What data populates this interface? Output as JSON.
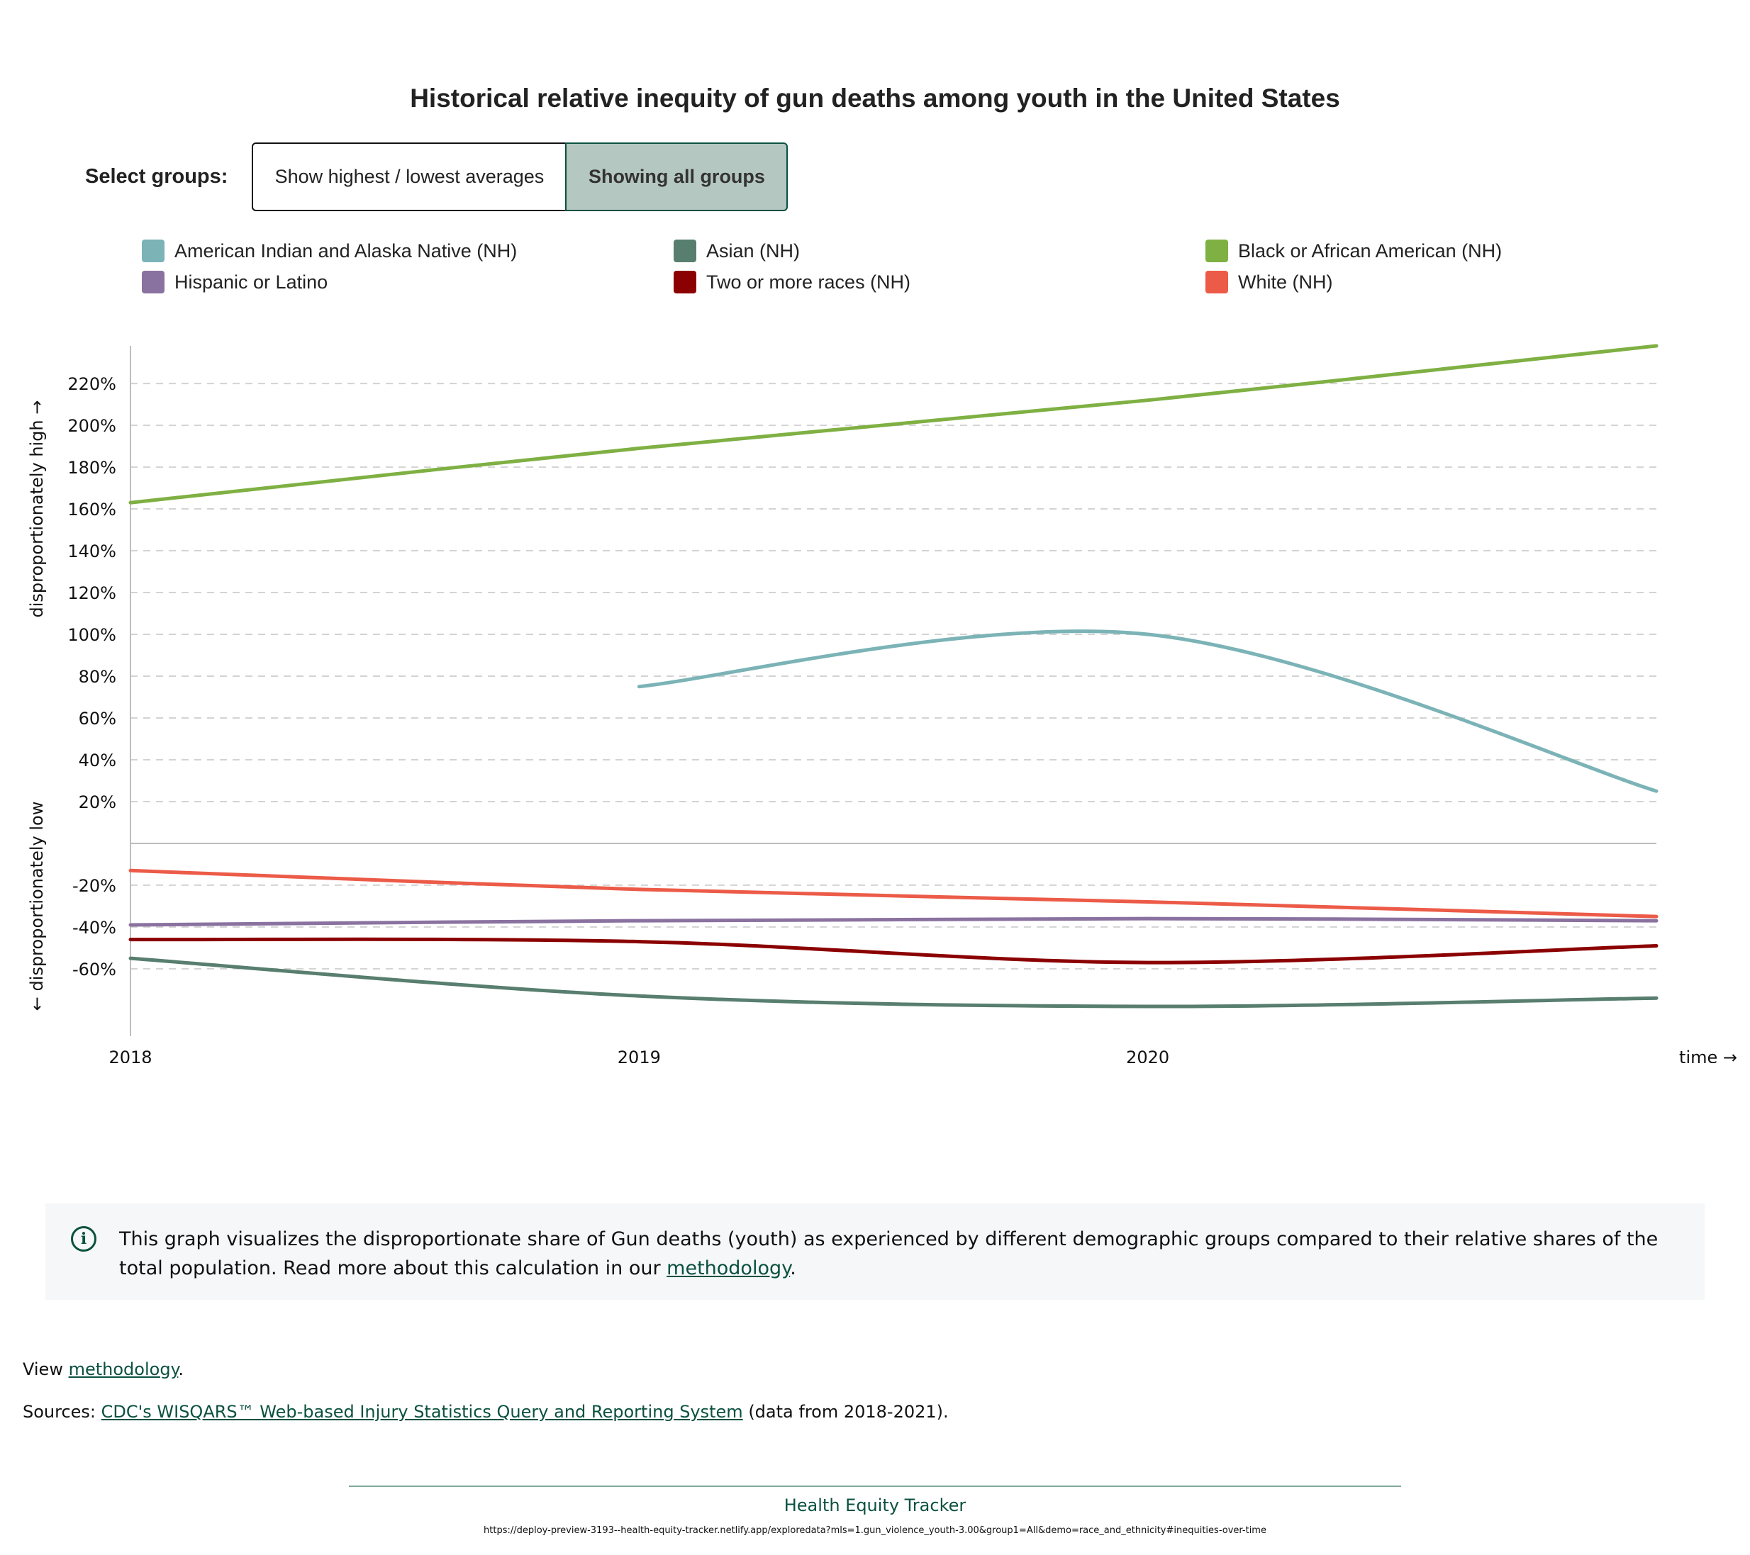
{
  "title": "Historical relative inequity of gun deaths among youth in the United States",
  "selector": {
    "label": "Select groups:",
    "option_highest_lowest": "Show highest / lowest averages",
    "option_all": "Showing all groups"
  },
  "legend": [
    {
      "label": "American Indian and Alaska Native (NH)",
      "color": "#7bb3b6"
    },
    {
      "label": "Asian (NH)",
      "color": "#587e6f"
    },
    {
      "label": "Black or African American (NH)",
      "color": "#7fb043"
    },
    {
      "label": "Hispanic or Latino",
      "color": "#8a72a0"
    },
    {
      "label": "Two or more races (NH)",
      "color": "#8b0000"
    },
    {
      "label": "White (NH)",
      "color": "#ec5b48"
    }
  ],
  "chart_data": {
    "type": "line",
    "title": "Historical relative inequity of gun deaths among youth in the United States",
    "xlabel": "time →",
    "ylabel_high": "disproportionately high →",
    "ylabel_low": "← disproportionately low",
    "x": [
      2018,
      2019,
      2020,
      2021
    ],
    "x_tick_labels": [
      "2018",
      "2019",
      "2020"
    ],
    "ylim": [
      -78,
      238
    ],
    "y_ticks": [
      -60,
      -40,
      -20,
      20,
      40,
      60,
      80,
      100,
      120,
      140,
      160,
      180,
      200,
      220
    ],
    "grid": "dashed horizontal",
    "series": [
      {
        "name": "American Indian and Alaska Native (NH)",
        "color": "#7bb3b6",
        "values": [
          null,
          75,
          100,
          25
        ]
      },
      {
        "name": "Asian (NH)",
        "color": "#587e6f",
        "values": [
          -55,
          -73,
          -78,
          -74
        ]
      },
      {
        "name": "Black or African American (NH)",
        "color": "#7fb043",
        "values": [
          163,
          189,
          212,
          238
        ]
      },
      {
        "name": "Hispanic or Latino",
        "color": "#8a72a0",
        "values": [
          -39,
          -37,
          -36,
          -37
        ]
      },
      {
        "name": "Two or more races (NH)",
        "color": "#8b0000",
        "values": [
          -46,
          -47,
          -57,
          -49
        ]
      },
      {
        "name": "White (NH)",
        "color": "#ec5b48",
        "values": [
          -13,
          -22,
          -28,
          -35
        ]
      }
    ]
  },
  "info": {
    "text_before": "This graph visualizes the disproportionate share of Gun deaths (youth) as experienced by different demographic groups compared to their relative shares of the total population. Read more about this calculation in our ",
    "link": "methodology",
    "text_after": "."
  },
  "view": {
    "prefix": "View ",
    "link": "methodology",
    "suffix": "."
  },
  "sources": {
    "prefix": "Sources: ",
    "link": "CDC's WISQARS™ Web-based Injury Statistics Query and Reporting System",
    "suffix": " (data from 2018-2021)."
  },
  "footer": {
    "brand": "Health Equity Tracker",
    "url": "https://deploy-preview-3193--health-equity-tracker.netlify.app/exploredata?mls=1.gun_violence_youth-3.00&group1=All&demo=race_and_ethnicity#inequities-over-time"
  }
}
